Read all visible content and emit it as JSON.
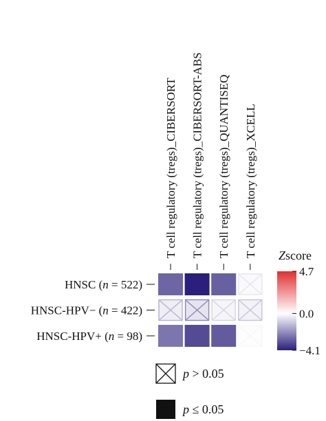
{
  "chart_data": {
    "type": "heatmap",
    "columns": [
      "T cell regulatory (tregs)_CIBERSORT",
      "T cell regulatory (tregs)_CIBERSORT-ABS",
      "T cell regulatory (tregs)_QUANTISEQ",
      "T cell regulatory (tregs)_XCELL"
    ],
    "rows": [
      {
        "name": "HNSC",
        "n_label": "n",
        "eq_label": " = 522)",
        "prefix": "HNSC (",
        "values": [
          -2.8,
          -4.1,
          -2.9,
          -0.3
        ],
        "significant": [
          true,
          true,
          true,
          false
        ]
      },
      {
        "name": "HNSC-HPV−",
        "prefix": "HNSC-HPV− (",
        "n_label": "n",
        "eq_label": " = 422)",
        "values": [
          -0.9,
          -1.4,
          -0.5,
          -0.7
        ],
        "significant": [
          false,
          false,
          false,
          false
        ]
      },
      {
        "name": "HNSC-HPV+",
        "prefix": "HNSC-HPV+ (",
        "n_label": "n",
        "eq_label": " = 98)",
        "values": [
          -2.5,
          -3.3,
          -3.0,
          -0.1
        ],
        "significant": [
          true,
          true,
          true,
          false
        ]
      }
    ],
    "colorbar": {
      "title_italic": "Z",
      "title_rest": "score",
      "max": 4.7,
      "mid": 0.0,
      "min": -4.1,
      "max_label": "4.7",
      "mid_label": "0.0",
      "min_label": "−4.1",
      "high_color": "#e03030",
      "mid_color": "#ffffff",
      "low_color": "#2a1f7a"
    },
    "legend": [
      {
        "symbol": "cross-box",
        "italic": "p",
        "rest": " > 0.05"
      },
      {
        "symbol": "filled-box",
        "italic": "p",
        "rest": " ≤ 0.05"
      }
    ]
  }
}
